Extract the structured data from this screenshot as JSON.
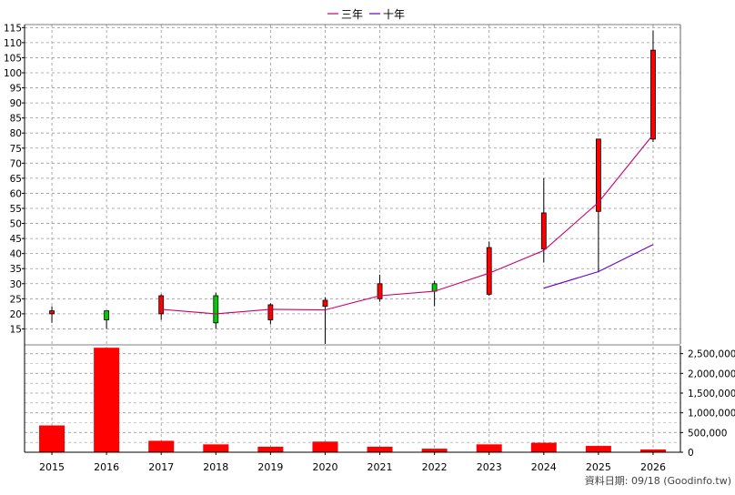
{
  "legend": {
    "items": [
      {
        "label": "三年",
        "color": "#cc0066"
      },
      {
        "label": "十年",
        "color": "#6600cc"
      }
    ]
  },
  "source_note": "資料日期: 09/18  (Goodinfo.tw)",
  "colors": {
    "up": "#ff0000",
    "down": "#00cc00",
    "grid": "#999999",
    "volume": "#ff0000"
  },
  "chart_data": [
    {
      "type": "candlestick",
      "title": "",
      "categories": [
        "2015",
        "2016",
        "2017",
        "2018",
        "2019",
        "2020",
        "2021",
        "2022",
        "2023",
        "2024",
        "2025",
        "2026"
      ],
      "ylim": [
        10,
        116
      ],
      "yticks": [
        15,
        20,
        25,
        30,
        35,
        40,
        45,
        50,
        55,
        60,
        65,
        70,
        75,
        80,
        85,
        90,
        95,
        100,
        105,
        110,
        115
      ],
      "candles": [
        {
          "x": "2015",
          "open": 20,
          "high": 22.5,
          "low": 17,
          "close": 21,
          "color": "red"
        },
        {
          "x": "2016",
          "open": 21,
          "high": 21,
          "low": 15,
          "close": 18,
          "color": "green"
        },
        {
          "x": "2017",
          "open": 20,
          "high": 26.5,
          "low": 18,
          "close": 26,
          "color": "red"
        },
        {
          "x": "2018",
          "open": 26,
          "high": 27,
          "low": 15,
          "close": 17,
          "color": "green"
        },
        {
          "x": "2019",
          "open": 18,
          "high": 23.5,
          "low": 16.5,
          "close": 23,
          "color": "red"
        },
        {
          "x": "2020",
          "open": 22.5,
          "high": 25.5,
          "low": 10,
          "close": 24.5,
          "color": "red"
        },
        {
          "x": "2021",
          "open": 25,
          "high": 33,
          "low": 24,
          "close": 30,
          "color": "red"
        },
        {
          "x": "2022",
          "open": 30,
          "high": 31,
          "low": 22.5,
          "close": 27.5,
          "color": "green"
        },
        {
          "x": "2023",
          "open": 26.5,
          "high": 44,
          "low": 26,
          "close": 42,
          "color": "red"
        },
        {
          "x": "2024",
          "open": 41.5,
          "high": 65,
          "low": 37,
          "close": 53.5,
          "color": "red"
        },
        {
          "x": "2025",
          "open": 54,
          "high": 78,
          "low": 34,
          "close": 78,
          "color": "red"
        },
        {
          "x": "2026",
          "open": 78,
          "high": 114,
          "low": 77,
          "close": 107.5,
          "color": "red"
        }
      ],
      "series": [
        {
          "name": "三年",
          "color": "#cc0066",
          "points": [
            {
              "x": "2017",
              "y": 21.5
            },
            {
              "x": "2018",
              "y": 20
            },
            {
              "x": "2019",
              "y": 21.5
            },
            {
              "x": "2020",
              "y": 21.3
            },
            {
              "x": "2021",
              "y": 26
            },
            {
              "x": "2022",
              "y": 27.5
            },
            {
              "x": "2023",
              "y": 33.5
            },
            {
              "x": "2024",
              "y": 41
            },
            {
              "x": "2025",
              "y": 57
            },
            {
              "x": "2026",
              "y": 79.5
            }
          ]
        },
        {
          "name": "十年",
          "color": "#6600cc",
          "points": [
            {
              "x": "2024",
              "y": 28.5
            },
            {
              "x": "2025",
              "y": 34
            },
            {
              "x": "2026",
              "y": 43
            }
          ]
        }
      ]
    },
    {
      "type": "bar",
      "title": "",
      "categories": [
        "2015",
        "2016",
        "2017",
        "2018",
        "2019",
        "2020",
        "2021",
        "2022",
        "2023",
        "2024",
        "2025",
        "2026"
      ],
      "values": [
        680000,
        2650000,
        290000,
        200000,
        140000,
        270000,
        140000,
        90000,
        200000,
        240000,
        160000,
        70000
      ],
      "ylim": [
        0,
        2700000
      ],
      "yticks": [
        0,
        500000,
        1000000,
        1500000,
        2000000,
        2500000
      ],
      "ytick_labels": [
        "0",
        "500,000",
        "1,000,000",
        "1,500,000",
        "2,000,000",
        "2,500,000"
      ]
    }
  ]
}
